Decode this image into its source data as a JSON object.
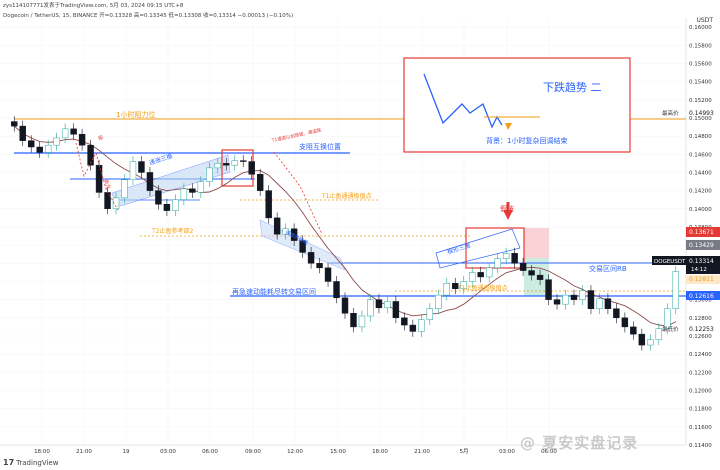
{
  "header": {
    "published": "zys114107771发表于TradingView.com, 5月 03, 2024 09:15 UTC+8",
    "symbol_line": "Dogecoin / TetherUS, 15, BINANCE 开=0.13328 高=0.13345 低=0.13308 收=0.13314 −0.00013 (−0.10%)",
    "currency": "USDT"
  },
  "price_axis": {
    "ticks": [
      "0.16000",
      "0.15800",
      "0.15600",
      "0.15400",
      "0.15200",
      "0.15000",
      "0.14800",
      "0.14600",
      "0.14400",
      "0.14200",
      "0.14000",
      "0.13800",
      "0.13600",
      "0.13400",
      "0.13200",
      "0.13000",
      "0.12800",
      "0.12600",
      "0.12400",
      "0.12200",
      "0.12000",
      "0.11800",
      "0.11600",
      "0.11400"
    ],
    "high_label": "最高价",
    "high_value": "0.14993",
    "low_label": "最低价",
    "low_value": "0.12253",
    "tag_red": "0.13671",
    "tag_grey": "0.13429",
    "tag_last": "0.13314",
    "tag_countdown": "14:12",
    "tag_symbol": "DOGEUSDT",
    "tag_orange": "0.12811",
    "tag_blue": "0.12616"
  },
  "time_axis": [
    "18:00",
    "21:00",
    "19",
    "03:00",
    "06:00",
    "09:00",
    "12:00",
    "15:00",
    "18:00",
    "21:00",
    "5月",
    "03:00",
    "06:00"
  ],
  "annotations": {
    "resistance_1h": "1小时阻力位",
    "support_switch": "支阻互换位置",
    "rising_channel": "递涨三推",
    "t1_target_top": "T1止盈通通极值点",
    "t2_target": "T2止盈参考部2",
    "falling_channel": "通道跌破结",
    "small_note_1": "T1通道以后跌破，通道跌",
    "break": "破",
    "sell_pressure": "卖方",
    "wedge": "楔形三推",
    "false_break": "假破",
    "range_b": "交易区间RB",
    "t1_target_low": "T1止盈通道极值点",
    "climax_note": "再急速动能耗尽转交易区间"
  },
  "inset": {
    "title": "下跌趋势 二",
    "note": "背景：1小时复杂回调结束"
  },
  "footer": {
    "logo": "TradingView"
  },
  "watermark": "@ 夏安实盘记录",
  "colors": {
    "up": "#26a69a",
    "down": "#131722",
    "blue": "#2962ff",
    "orange": "#f39c12",
    "red": "#e53935",
    "ma": "#8d4a4a"
  },
  "chart_data": {
    "type": "candlestick",
    "symbol": "Dogecoin / TetherUS",
    "interval": "15",
    "ylim": [
      0.114,
      0.161
    ],
    "ohlc_close": [
      0.1491,
      0.1475,
      0.1468,
      0.1462,
      0.147,
      0.1478,
      0.1488,
      0.1482,
      0.147,
      0.1448,
      0.1418,
      0.14,
      0.1412,
      0.1432,
      0.1452,
      0.144,
      0.142,
      0.1405,
      0.1398,
      0.141,
      0.1422,
      0.1418,
      0.143,
      0.1445,
      0.145,
      0.1448,
      0.1453,
      0.1452,
      0.1438,
      0.142,
      0.139,
      0.1372,
      0.1378,
      0.1365,
      0.1352,
      0.134,
      0.1335,
      0.132,
      0.1302,
      0.1285,
      0.127,
      0.1282,
      0.13,
      0.1291,
      0.1298,
      0.128,
      0.1272,
      0.1265,
      0.1278,
      0.129,
      0.1305,
      0.1318,
      0.1312,
      0.132,
      0.133,
      0.1325,
      0.1335,
      0.1345,
      0.1351,
      0.134,
      0.1332,
      0.1327,
      0.1322,
      0.13,
      0.1295,
      0.1305,
      0.13,
      0.131,
      0.129,
      0.1301,
      0.129,
      0.128,
      0.127,
      0.1262,
      0.125,
      0.1256,
      0.1268,
      0.129,
      0.1331
    ],
    "high": 0.14993,
    "low": 0.12253,
    "last": 0.13314
  }
}
